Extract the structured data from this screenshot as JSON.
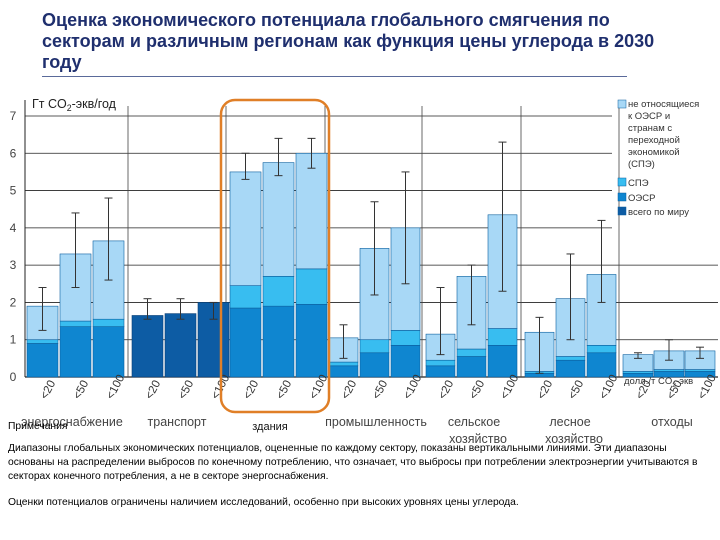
{
  "slide": {
    "title": "Оценка экономического потенциала глобального смягчения по секторам и различным регионам как функция цены углерода в 2030 году"
  },
  "notes": {
    "heading": "Примечания",
    "paragraph1": "Диапазоны глобальных экономических потенциалов, оцененные по каждому сектору, показаны вертикальными линиями. Эти диапазоны основаны на распределении выбросов по конечному потреблению, что означает, что выбросы при потреблении электроэнергии учитываются в секторах конечного потребления, а не в секторе энергоснабжения.",
    "paragraph2": "Оценки потенциалов ограничены наличием исследований, особенно при высоких уровнях цены углерода."
  },
  "colors": {
    "non_oecd_eit": "#a8d8f6",
    "eit": "#38bdf0",
    "oecd": "#0f86d0",
    "world_total": "#0d5ca4",
    "highlight": "#e07f27",
    "grid": "#222222"
  },
  "chart_data": {
    "type": "bar",
    "stacked": true,
    "ylabel_prefix": "Гт CO",
    "ylabel_sub": "2",
    "ylabel_suffix": "-экв/год",
    "ylim": [
      0,
      7
    ],
    "yticks": [
      "0",
      "1",
      "2",
      "3",
      "4",
      "5",
      "6",
      "7"
    ],
    "price_labels": [
      "<20",
      "<50",
      "<100"
    ],
    "price_unit_prefix": "долл./т CO",
    "price_unit_sub": "2",
    "price_unit_suffix": "-экв",
    "legend": [
      {
        "key": "non_oecd_eit",
        "label": "не относящиеся к ОЭСР и странам с переходной экономикой (СПЭ)"
      },
      {
        "key": "eit",
        "label": "СПЭ"
      },
      {
        "key": "oecd",
        "label": "ОЭСР"
      },
      {
        "key": "world_total",
        "label": "всего по миру"
      }
    ],
    "sectors": [
      {
        "name": "энергоснабжение",
        "bars": [
          {
            "price": "<20",
            "oecd": 0.9,
            "eit": 0.1,
            "non_oecd_eit": 0.9,
            "range": [
              1.25,
              2.4
            ]
          },
          {
            "price": "<50",
            "oecd": 1.35,
            "eit": 0.15,
            "non_oecd_eit": 1.8,
            "range": [
              2.4,
              4.4
            ]
          },
          {
            "price": "<100",
            "oecd": 1.35,
            "eit": 0.2,
            "non_oecd_eit": 2.1,
            "range": [
              2.6,
              4.8
            ]
          }
        ]
      },
      {
        "name": "транспорт",
        "bars": [
          {
            "price": "<20",
            "world_total": 1.65,
            "range": [
              1.55,
              2.1
            ]
          },
          {
            "price": "<50",
            "world_total": 1.7,
            "range": [
              1.55,
              2.1
            ]
          },
          {
            "price": "<100",
            "world_total": 2.0,
            "range": [
              1.55,
              2.0
            ]
          }
        ]
      },
      {
        "name": "здания",
        "highlighted": true,
        "bars": [
          {
            "price": "<20",
            "oecd": 1.85,
            "eit": 0.6,
            "non_oecd_eit": 3.05,
            "range": [
              5.3,
              6.0
            ]
          },
          {
            "price": "<50",
            "oecd": 1.9,
            "eit": 0.8,
            "non_oecd_eit": 3.05,
            "range": [
              5.4,
              6.4
            ]
          },
          {
            "price": "<100",
            "oecd": 1.95,
            "eit": 0.95,
            "non_oecd_eit": 3.1,
            "range": [
              5.6,
              6.4
            ]
          }
        ]
      },
      {
        "name": "промышленность",
        "bars": [
          {
            "price": "<20",
            "oecd": 0.3,
            "eit": 0.1,
            "non_oecd_eit": 0.65,
            "range": [
              0.5,
              1.4
            ]
          },
          {
            "price": "<50",
            "oecd": 0.65,
            "eit": 0.35,
            "non_oecd_eit": 2.45,
            "range": [
              2.2,
              4.7
            ]
          },
          {
            "price": "<100",
            "oecd": 0.85,
            "eit": 0.4,
            "non_oecd_eit": 2.75,
            "range": [
              2.5,
              5.5
            ]
          }
        ]
      },
      {
        "name": "сельское хозяйство",
        "bars": [
          {
            "price": "<20",
            "oecd": 0.3,
            "eit": 0.15,
            "non_oecd_eit": 0.7,
            "range": [
              0.6,
              2.4
            ]
          },
          {
            "price": "<50",
            "oecd": 0.55,
            "eit": 0.2,
            "non_oecd_eit": 1.95,
            "range": [
              1.4,
              3.0
            ]
          },
          {
            "price": "<100",
            "oecd": 0.85,
            "eit": 0.45,
            "non_oecd_eit": 3.05,
            "range": [
              2.3,
              6.3
            ]
          }
        ]
      },
      {
        "name": "лесное хозяйство",
        "bars": [
          {
            "price": "<20",
            "oecd": 0.1,
            "eit": 0.05,
            "non_oecd_eit": 1.05,
            "range": [
              0.1,
              1.6
            ]
          },
          {
            "price": "<50",
            "oecd": 0.45,
            "eit": 0.1,
            "non_oecd_eit": 1.55,
            "range": [
              1.0,
              3.3
            ]
          },
          {
            "price": "<100",
            "oecd": 0.65,
            "eit": 0.2,
            "non_oecd_eit": 1.9,
            "range": [
              2.0,
              4.2
            ]
          }
        ]
      },
      {
        "name": "отходы",
        "bars": [
          {
            "price": "<20",
            "oecd": 0.1,
            "eit": 0.05,
            "non_oecd_eit": 0.45,
            "range": [
              0.5,
              0.65
            ]
          },
          {
            "price": "<50",
            "oecd": 0.15,
            "eit": 0.05,
            "non_oecd_eit": 0.5,
            "range": [
              0.45,
              1.0
            ]
          },
          {
            "price": "<100",
            "oecd": 0.15,
            "eit": 0.05,
            "non_oecd_eit": 0.5,
            "range": [
              0.5,
              0.8
            ]
          }
        ]
      }
    ]
  }
}
